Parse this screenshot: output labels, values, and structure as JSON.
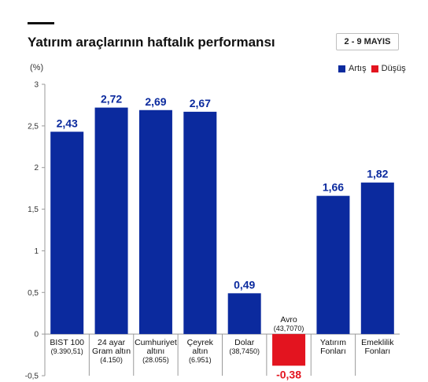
{
  "title": "Yatırım araçlarının haftalık performansı",
  "date_range": "2 - 9 MAYIS",
  "unit_label": "(%)",
  "legend": [
    {
      "label": "Artış",
      "color": "#0b2a9e"
    },
    {
      "label": "Düşüş",
      "color": "#e3141f"
    }
  ],
  "chart_data": {
    "type": "bar",
    "categories": [
      [
        "BIST 100",
        "(9.390,51)"
      ],
      [
        "24 ayar",
        "Gram altın",
        "(4.150)"
      ],
      [
        "Cumhuriyet",
        "altını",
        "(28.055)"
      ],
      [
        "Çeyrek",
        "altın",
        "(6.951)"
      ],
      [
        "Dolar",
        "(38,7450)"
      ],
      [
        "Avro",
        "(43,7070)"
      ],
      [
        "Yatırım",
        "Fonları"
      ],
      [
        "Emeklilik",
        "Fonları"
      ]
    ],
    "values": [
      2.43,
      2.72,
      2.69,
      2.67,
      0.49,
      -0.38,
      1.66,
      1.82
    ],
    "value_labels": [
      "2,43",
      "2,72",
      "2,69",
      "2,67",
      "0,49",
      "-0,38",
      "1,66",
      "1,82"
    ],
    "yticks": [
      -0.5,
      0,
      0.5,
      1,
      1.5,
      2,
      2.5,
      3
    ],
    "ytick_labels": [
      "-0,5",
      "0",
      "0,5",
      "1",
      "1,5",
      "2",
      "2,5",
      "3"
    ],
    "ylim": [
      -0.5,
      3
    ],
    "grid": "vertical separators"
  }
}
